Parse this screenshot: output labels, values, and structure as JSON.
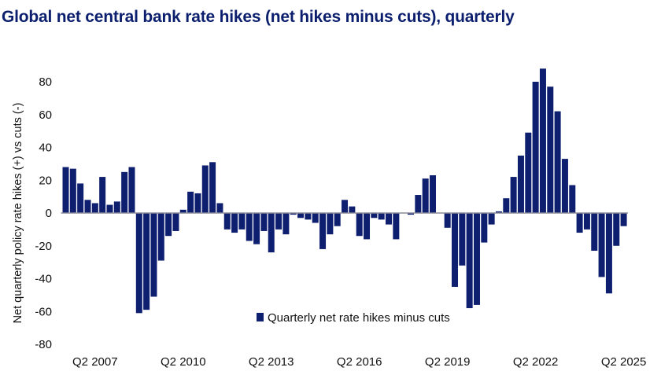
{
  "chart_data": {
    "type": "bar",
    "title": "Global net central bank rate hikes (net hikes minus cuts), quarterly",
    "xlabel": "",
    "ylabel": "Net quarterly policy rate hikes (+) vs cuts (-)",
    "ylim": [
      -80,
      90
    ],
    "yticks": [
      80,
      60,
      40,
      20,
      0,
      -20,
      -40,
      -60,
      -80
    ],
    "ytick_labels": [
      "80",
      "60",
      "40",
      "20",
      "0",
      "-20",
      "-40",
      "-60",
      "-80"
    ],
    "xtick_labels": [
      "Q2 2007",
      "Q2 2010",
      "Q2 2013",
      "Q2 2016",
      "Q2 2019",
      "Q2 2022",
      "Q2 2025"
    ],
    "xtick_indices": [
      4,
      16,
      28,
      40,
      52,
      64,
      76
    ],
    "first_period": "Q2 2006",
    "last_period": "Q2 2025",
    "grid": false,
    "legend": {
      "position": "bottom-center",
      "entries": [
        "Quarterly net rate hikes minus cuts"
      ]
    },
    "series": [
      {
        "name": "Quarterly net rate hikes minus cuts",
        "color": "#0f1f6f",
        "values": [
          28,
          27,
          18,
          8,
          6,
          22,
          5,
          7,
          25,
          28,
          -61,
          -59,
          -51,
          -29,
          -14,
          -11,
          2,
          13,
          12,
          29,
          31,
          6,
          -10,
          -12,
          -10,
          -17,
          -19,
          -11,
          -24,
          -10,
          -13,
          -1,
          -3,
          -4,
          -6,
          -22,
          -13,
          -8,
          8,
          4,
          -14,
          -16,
          -3,
          -4,
          -7,
          -16,
          0,
          -1,
          11,
          21,
          23,
          0,
          -9,
          -45,
          -32,
          -58,
          -56,
          -18,
          -7,
          1,
          9,
          22,
          35,
          49,
          80,
          88,
          77,
          62,
          33,
          17,
          -12,
          -10,
          -23,
          -39,
          -49,
          -20,
          -8
        ]
      }
    ]
  },
  "colors": {
    "title": "#0b1f6e",
    "bar": "#0f1f6f",
    "axis": "#8c8c9a"
  }
}
